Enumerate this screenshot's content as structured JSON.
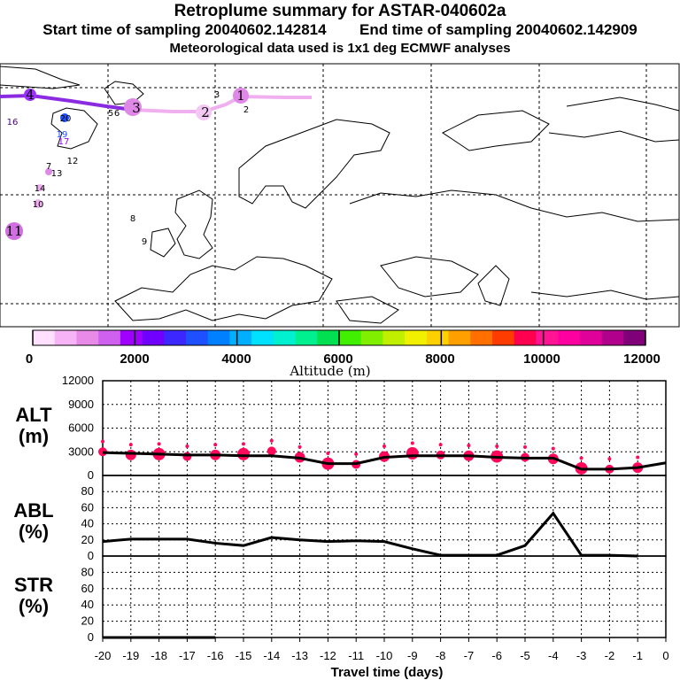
{
  "header": {
    "title": "Retroplume summary for ASTAR-040602a",
    "start_label": "Start time of sampling 20040602.142814",
    "end_label": "End time of sampling 20040602.142909",
    "met_label": "Meteorological data used is 1x1 deg ECMWF analyses"
  },
  "colors": {
    "series": "#000000",
    "dots": "#ff0a5a",
    "grid": "#000000"
  },
  "colorbar": {
    "label": "Altitude (m)",
    "ticks": [
      "0",
      "2000",
      "4000",
      "6000",
      "8000",
      "10000",
      "12000"
    ],
    "colors": [
      "#ffe0ff",
      "#f6b4f6",
      "#e88ae8",
      "#d060f0",
      "#a000ff",
      "#7000ff",
      "#3c28ff",
      "#1e50ff",
      "#0080ff",
      "#00b0ff",
      "#00e0ff",
      "#00f0d0",
      "#00f090",
      "#00e050",
      "#40f000",
      "#80f000",
      "#c0f000",
      "#f0f000",
      "#ffd000",
      "#ffa000",
      "#ff7000",
      "#ff3c00",
      "#ff0050",
      "#ff1493",
      "#ff00a0",
      "#e0009a",
      "#b0008c",
      "#80007a"
    ]
  },
  "map": {
    "markers": [
      {
        "label": "1",
        "kind": "big"
      },
      {
        "label": "2",
        "kind": "big"
      },
      {
        "label": "3",
        "kind": "big"
      },
      {
        "label": "4",
        "kind": "big"
      },
      {
        "label": "11",
        "kind": "big"
      },
      {
        "label": "16",
        "kind": "small"
      },
      {
        "label": "20",
        "kind": "small"
      },
      {
        "label": "19",
        "kind": "small"
      },
      {
        "label": "17",
        "kind": "small"
      },
      {
        "label": "12",
        "kind": "small"
      },
      {
        "label": "7",
        "kind": "small"
      },
      {
        "label": "13",
        "kind": "small"
      },
      {
        "label": "14",
        "kind": "small"
      },
      {
        "label": "10",
        "kind": "small"
      },
      {
        "label": "8",
        "kind": "small"
      },
      {
        "label": "9",
        "kind": "small"
      },
      {
        "label": "5",
        "kind": "small"
      },
      {
        "label": "6",
        "kind": "small"
      },
      {
        "label": "3",
        "kind": "small"
      },
      {
        "label": "2",
        "kind": "small"
      }
    ]
  },
  "chart_data": [
    {
      "type": "line",
      "panel": "ALT",
      "ylabel_top": "ALT",
      "ylabel_bottom": "(m)",
      "ylim": [
        0,
        12000
      ],
      "yticks": [
        "12000",
        "9000",
        "6000",
        "3000",
        "0"
      ],
      "x": [
        -20,
        -19,
        -18,
        -17,
        -16,
        -15,
        -14,
        -13,
        -12,
        -11,
        -10,
        -9,
        -8,
        -7,
        -6,
        -5,
        -4,
        -3,
        -2,
        -1,
        0
      ],
      "values": [
        2900,
        2800,
        2700,
        2600,
        2600,
        2500,
        2500,
        2200,
        1500,
        1500,
        2300,
        2500,
        2500,
        2500,
        2300,
        2200,
        2200,
        800,
        800,
        1000,
        1600
      ],
      "dot_values": [
        3000,
        2600,
        2700,
        2400,
        2600,
        2700,
        3100,
        2300,
        1500,
        1400,
        2400,
        2800,
        2600,
        2500,
        2400,
        2300,
        2100,
        900,
        800,
        1000
      ]
    },
    {
      "type": "line",
      "panel": "ABL",
      "ylabel_top": "ABL",
      "ylabel_bottom": "(%)",
      "ylim": [
        0,
        100
      ],
      "yticks": [
        "80",
        "60",
        "40",
        "20",
        "0"
      ],
      "x": [
        -20,
        -19,
        -18,
        -17,
        -16,
        -15,
        -14,
        -13,
        -12,
        -11,
        -10,
        -9,
        -8,
        -7,
        -6,
        -5,
        -4,
        -3,
        -2,
        -1
      ],
      "values": [
        18,
        21,
        21,
        21,
        16,
        13,
        23,
        20,
        18,
        19,
        18,
        9,
        1,
        1,
        1,
        13,
        53,
        1,
        1,
        0
      ]
    },
    {
      "type": "line",
      "panel": "STR",
      "ylabel_top": "STR",
      "ylabel_bottom": "(%)",
      "ylim": [
        0,
        100
      ],
      "yticks": [
        "80",
        "60",
        "40",
        "20",
        "0"
      ],
      "x": [
        -20,
        -19,
        -18,
        -17,
        -16
      ],
      "values": [
        0,
        0,
        0,
        0,
        0
      ]
    }
  ],
  "xaxis": {
    "label": "Travel time (days)",
    "ticks": [
      "-20",
      "-19",
      "-18",
      "-17",
      "-16",
      "-15",
      "-14",
      "-13",
      "-12",
      "-11",
      "-10",
      "-9",
      "-8",
      "-7",
      "-6",
      "-5",
      "-4",
      "-3",
      "-2",
      "-1",
      "0"
    ]
  }
}
